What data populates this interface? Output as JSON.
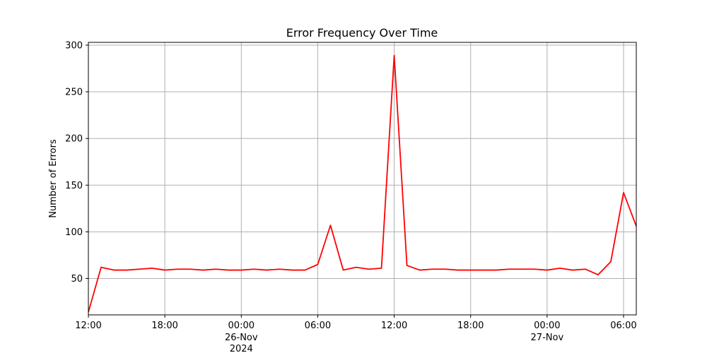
{
  "chart_data": {
    "type": "line",
    "title": "Error Frequency Over Time",
    "xlabel": "",
    "ylabel": "Number of Errors",
    "grid": true,
    "x_start": "2024-11-25T12:00",
    "x_step_hours": 1,
    "xlim": [
      "2024-11-25T12:00",
      "2024-11-27T07:00"
    ],
    "ylim": [
      11,
      303
    ],
    "yticks": [
      50,
      100,
      150,
      200,
      250,
      300
    ],
    "xticks": [
      {
        "x": "2024-11-25T12:00",
        "label": "12:00",
        "sub": ""
      },
      {
        "x": "2024-11-25T18:00",
        "label": "18:00",
        "sub": ""
      },
      {
        "x": "2024-11-26T00:00",
        "label": "00:00",
        "sub": "26-Nov\n2024"
      },
      {
        "x": "2024-11-26T06:00",
        "label": "06:00",
        "sub": ""
      },
      {
        "x": "2024-11-26T12:00",
        "label": "12:00",
        "sub": ""
      },
      {
        "x": "2024-11-26T18:00",
        "label": "18:00",
        "sub": ""
      },
      {
        "x": "2024-11-27T00:00",
        "label": "00:00",
        "sub": "27-Nov"
      },
      {
        "x": "2024-11-27T06:00",
        "label": "06:00",
        "sub": ""
      }
    ],
    "series": [
      {
        "color": "#ff0000",
        "values": [
          14,
          62,
          59,
          59,
          60,
          61,
          59,
          60,
          60,
          59,
          60,
          59,
          59,
          60,
          59,
          60,
          59,
          59,
          65,
          107,
          59,
          62,
          60,
          61,
          289,
          64,
          59,
          60,
          60,
          59,
          59,
          59,
          59,
          60,
          60,
          60,
          59,
          61,
          59,
          60,
          54,
          68,
          142,
          106
        ]
      }
    ]
  }
}
